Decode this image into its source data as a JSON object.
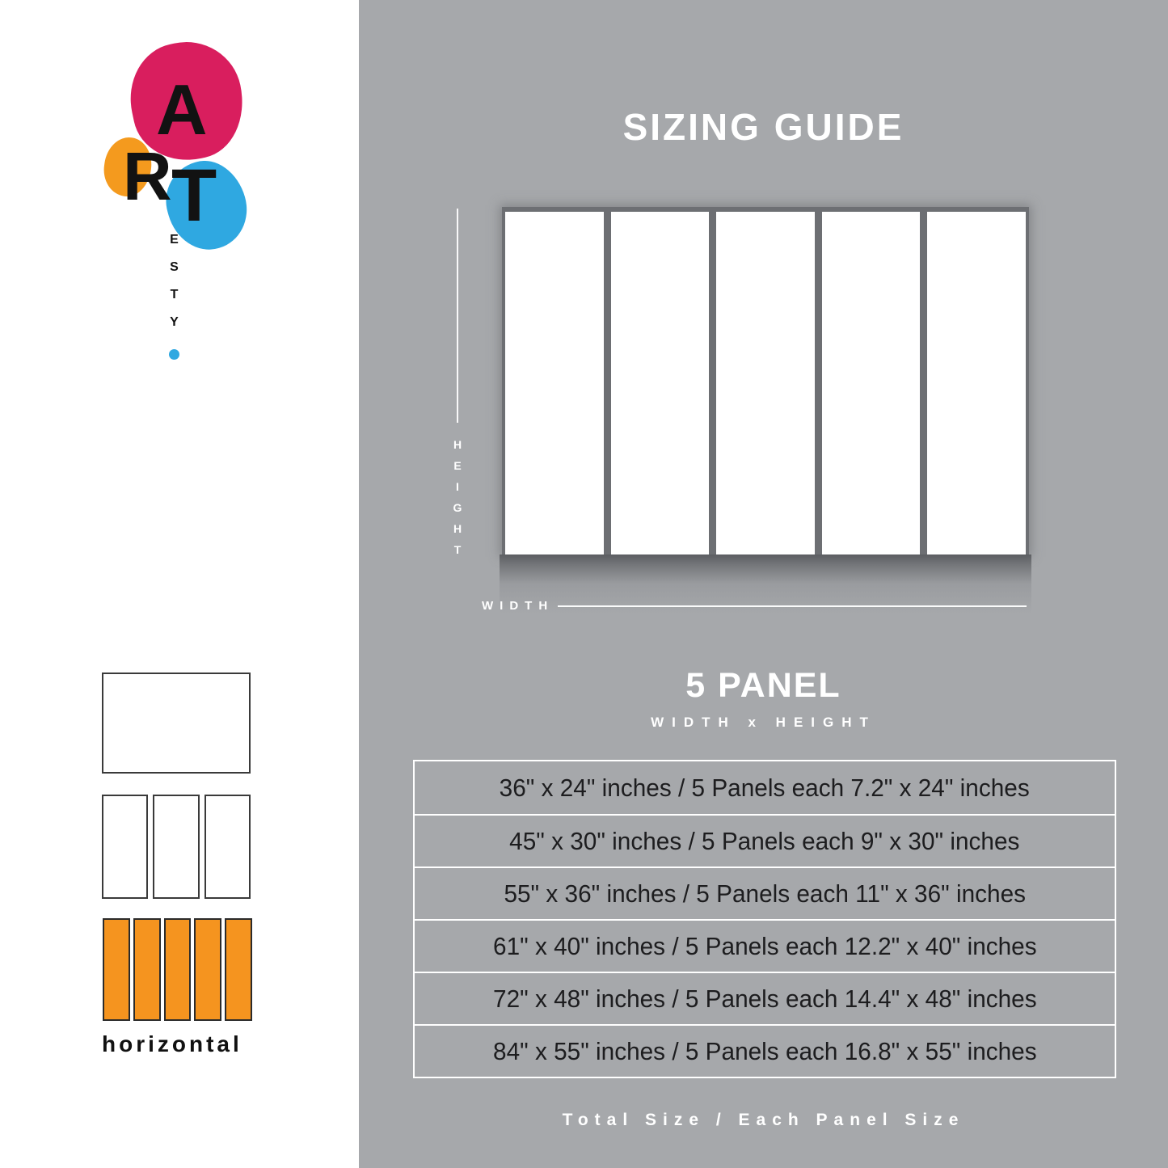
{
  "logo": {
    "letter_a": "A",
    "letter_r": "R",
    "letter_t": "T",
    "vertical_suffix": "ESTY",
    "colors": {
      "pink": "#d91e5e",
      "orange": "#f49a1e",
      "blue": "#2fa8e1"
    }
  },
  "sidebar": {
    "orientation_label": "horizontal",
    "thumbnails": [
      {
        "name": "single-panel-layout"
      },
      {
        "name": "three-panel-layout"
      },
      {
        "name": "five-panel-horizontal-layout",
        "highlight_color": "#f5941f"
      }
    ]
  },
  "guide": {
    "title": "SIZING GUIDE",
    "height_label": "HEIGHT",
    "width_label": "WIDTH",
    "panel_heading": "5 PANEL",
    "dimension_format": "WIDTH x HEIGHT",
    "panel_count": 5,
    "sizes": [
      "36\" x 24\" inches / 5 Panels each 7.2\" x 24\" inches",
      "45\" x 30\" inches / 5 Panels each 9\" x 30\" inches",
      "55\" x 36\" inches / 5 Panels each 11\" x 36\" inches",
      "61\" x 40\" inches / 5 Panels each 12.2\" x 40\" inches",
      "72\" x 48\" inches / 5 Panels each 14.4\" x 48\" inches",
      "84\" x 55\" inches / 5 Panels each 16.8\" x 55\" inches"
    ],
    "footer_note": "Total Size / Each Panel Size",
    "background_color": "#a6a8ab"
  }
}
